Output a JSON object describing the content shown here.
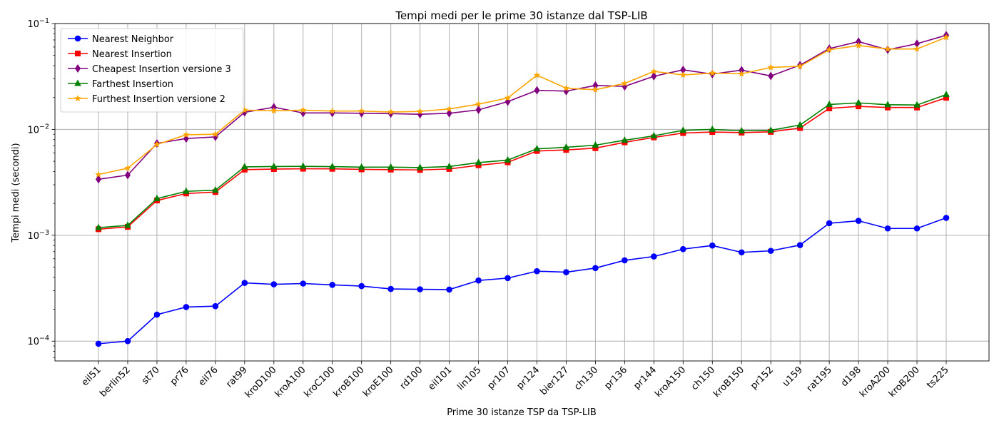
{
  "chart_data": {
    "type": "line",
    "title": "Tempi medi per le prime 30 istanze dal TSP-LIB",
    "xlabel": "Prime 30 istanze TSP da TSP-LIB",
    "ylabel": "Tempi medi (secondi)",
    "yscale": "log",
    "ylim": [
      6.5e-05,
      0.1
    ],
    "yticks": [
      {
        "value": 0.0001,
        "base": "10",
        "exp": "−4"
      },
      {
        "value": 0.001,
        "base": "10",
        "exp": "−3"
      },
      {
        "value": 0.01,
        "base": "10",
        "exp": "−2"
      },
      {
        "value": 0.1,
        "base": "10",
        "exp": "−1"
      }
    ],
    "grid": true,
    "legend_position": "top-left",
    "categories": [
      "eil51",
      "berlin52",
      "st70",
      "pr76",
      "eil76",
      "rat99",
      "kroD100",
      "kroA100",
      "kroC100",
      "kroB100",
      "kroE100",
      "rd100",
      "eil101",
      "lin105",
      "pr107",
      "pr124",
      "bier127",
      "ch130",
      "pr136",
      "pr144",
      "kroA150",
      "ch150",
      "kroB150",
      "pr152",
      "u159",
      "rat195",
      "d198",
      "kroA200",
      "kroB200",
      "ts225"
    ],
    "series": [
      {
        "name": "Nearest Neighbor",
        "color": "#0000ff",
        "marker": "circle",
        "values": [
          9.45e-05,
          0.0001,
          0.000178,
          0.00021,
          0.000214,
          0.000355,
          0.000344,
          0.00035,
          0.00034,
          0.000331,
          0.000311,
          0.000309,
          0.000307,
          0.000374,
          0.000394,
          0.000458,
          0.000448,
          0.00049,
          0.00058,
          0.00063,
          0.00074,
          0.0008,
          0.00069,
          0.000713,
          0.000808,
          0.0013,
          0.00137,
          0.00116,
          0.00116,
          0.00146
        ]
      },
      {
        "name": "Nearest Insertion",
        "color": "#ff0000",
        "marker": "square",
        "values": [
          0.00114,
          0.0012,
          0.00213,
          0.00248,
          0.00256,
          0.00417,
          0.00422,
          0.00425,
          0.00424,
          0.00419,
          0.00417,
          0.00414,
          0.00423,
          0.00458,
          0.00489,
          0.00625,
          0.0064,
          0.00665,
          0.00755,
          0.0084,
          0.00924,
          0.00945,
          0.00932,
          0.00948,
          0.0103,
          0.0158,
          0.0165,
          0.0161,
          0.0161,
          0.0199
        ]
      },
      {
        "name": "Cheapest Insertion versione 3",
        "color": "#800080",
        "marker": "diamond",
        "values": [
          0.00338,
          0.0037,
          0.00738,
          0.0082,
          0.0085,
          0.0145,
          0.0162,
          0.0143,
          0.0143,
          0.0142,
          0.0141,
          0.0139,
          0.0142,
          0.0153,
          0.0183,
          0.0234,
          0.023,
          0.026,
          0.0255,
          0.0318,
          0.0365,
          0.0333,
          0.0363,
          0.032,
          0.0405,
          0.058,
          0.0675,
          0.0565,
          0.0645,
          0.0775
        ]
      },
      {
        "name": "Farthest Insertion",
        "color": "#008000",
        "marker": "triangle",
        "values": [
          0.00118,
          0.00124,
          0.00222,
          0.0026,
          0.00267,
          0.00443,
          0.00446,
          0.00448,
          0.00445,
          0.0044,
          0.0044,
          0.00436,
          0.00446,
          0.00486,
          0.00513,
          0.00655,
          0.00678,
          0.0071,
          0.0079,
          0.0087,
          0.0098,
          0.01,
          0.0097,
          0.0098,
          0.011,
          0.0172,
          0.0178,
          0.0171,
          0.017,
          0.0213
        ]
      },
      {
        "name": "Furthest Insertion versione 2",
        "color": "#ffa500",
        "marker": "star",
        "values": [
          0.00375,
          0.0043,
          0.0072,
          0.0089,
          0.009,
          0.0152,
          0.015,
          0.0152,
          0.0149,
          0.0149,
          0.0146,
          0.0148,
          0.0156,
          0.0173,
          0.0198,
          0.0325,
          0.0245,
          0.0237,
          0.0272,
          0.0353,
          0.0327,
          0.034,
          0.0335,
          0.0385,
          0.0395,
          0.0565,
          0.062,
          0.0575,
          0.0575,
          0.074
        ]
      }
    ]
  }
}
